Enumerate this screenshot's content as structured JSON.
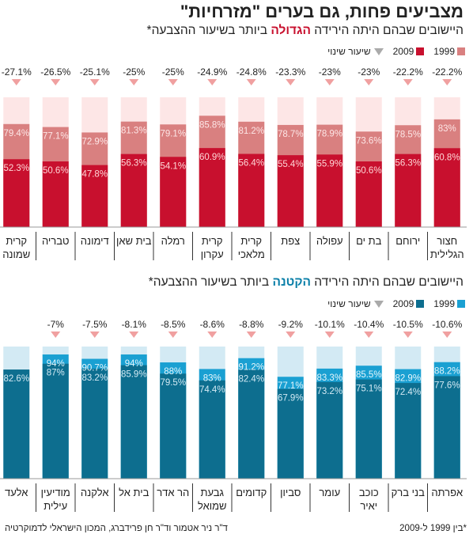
{
  "title": "מצביעים פחות, גם בערים \"מזרחיות\"",
  "footer": {
    "note": "*בין 1999 ל-2009",
    "credit": "ד\"ר ניר אטמור וד\"ר חן פרידברג, המכון הישראלי לדמוקרטיה"
  },
  "chart_data": [
    {
      "type": "bar",
      "title_parts": [
        "היישובים שבהם היתה הירידה ",
        "הגדולה",
        " ביותר בשיעור ההצבעה*"
      ],
      "legend": {
        "y1999": "1999",
        "y2009": "2009",
        "change": "שיעור שינוי"
      },
      "colors": {
        "y1999": "#d98080",
        "y2009": "#c8102e",
        "bg": "#fde6e6",
        "change_marker": "#f0a0a0",
        "label_1999": "#fde6e6",
        "label_2009": "#ffd7d7"
      },
      "ylim": [
        0,
        100
      ],
      "categories": [
        [
          "חצור",
          "הגלילית"
        ],
        [
          "ירוחם"
        ],
        [
          "בת ים"
        ],
        [
          "עפולה"
        ],
        [
          "צפת"
        ],
        [
          "קרית",
          "מלאכי"
        ],
        [
          "קרית",
          "עקרון"
        ],
        [
          "רמלה"
        ],
        [
          "בית שאן"
        ],
        [
          "דימונה"
        ],
        [
          "טבריה"
        ],
        [
          "קרית",
          "שמונה"
        ]
      ],
      "series": [
        {
          "name": "1999",
          "values": [
            83,
            78.5,
            73.6,
            78.9,
            78.7,
            81.2,
            85.8,
            79.1,
            81.3,
            72.9,
            77.1,
            79.4
          ]
        },
        {
          "name": "2009",
          "values": [
            60.8,
            56.3,
            50.6,
            55.9,
            55.4,
            56.4,
            60.9,
            54.1,
            56.3,
            47.8,
            50.6,
            52.3
          ]
        }
      ],
      "change": [
        -22.2,
        -22.2,
        -23,
        -23,
        -23.3,
        -24.8,
        -24.9,
        -25,
        -25,
        -25.1,
        -26.5,
        -27.1
      ]
    },
    {
      "type": "bar",
      "title_parts": [
        "היישובים שבהם היתה הירידה ",
        "הקטנה",
        " ביותר בשיעור ההצבעה*"
      ],
      "legend": {
        "y1999": "1999",
        "y2009": "2009",
        "change": "שיעור שינוי"
      },
      "colors": {
        "y1999": "#1aa0d2",
        "y2009": "#0d6e8f",
        "bg": "#d3eaf4",
        "change_marker": "#f0a0a0",
        "label_1999": "#e6f6fc",
        "label_2009": "#d3eaf4"
      },
      "ylim": [
        0,
        100
      ],
      "categories": [
        [
          "אפרתה"
        ],
        [
          "בני ברק"
        ],
        [
          "כוכב",
          "יאיר"
        ],
        [
          "עומר"
        ],
        [
          "סביון"
        ],
        [
          "קדומים"
        ],
        [
          "גבעת",
          "שמואל"
        ],
        [
          "הר אדר"
        ],
        [
          "בית אל"
        ],
        [
          "אלקנה"
        ],
        [
          "מודיעין",
          "עילית"
        ],
        [
          "אלעד"
        ]
      ],
      "series": [
        {
          "name": "1999",
          "values": [
            88.2,
            82.9,
            85.5,
            83.3,
            77.1,
            91.2,
            83,
            88,
            94,
            90.7,
            94,
            null
          ]
        },
        {
          "name": "2009",
          "values": [
            77.6,
            72.4,
            75.1,
            73.2,
            67.9,
            82.4,
            74.4,
            79.5,
            85.9,
            83.2,
            87,
            82.6
          ]
        }
      ],
      "change": [
        -10.6,
        -10.5,
        -10.4,
        -10.1,
        -9.2,
        -8.8,
        -8.6,
        -8.5,
        -8.1,
        -7.5,
        -7,
        null
      ]
    }
  ]
}
